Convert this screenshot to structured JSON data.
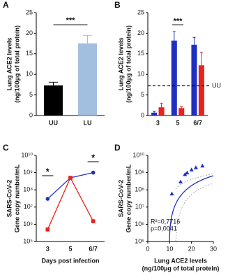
{
  "chart_data": [
    {
      "type": "bar",
      "panel": "A",
      "ylabel": [
        "Lung ACE2 levels",
        "(ng/100µg of total protein)"
      ],
      "categories": [
        "UU",
        "LU"
      ],
      "values": [
        7.3,
        17.5
      ],
      "errors": [
        0.8,
        2
      ],
      "colors": [
        "#000000",
        "#a3bfe0"
      ],
      "ylim": [
        0,
        25
      ],
      "yticks": [
        0,
        5,
        10,
        15,
        20,
        25
      ],
      "annotation": "***"
    },
    {
      "type": "bar",
      "panel": "B",
      "ylabel": [
        "Lung ACE2 levels",
        "(ng/100µg of total protein)"
      ],
      "categories": [
        "3",
        "5",
        "6/7"
      ],
      "series": [
        {
          "color": "#1f2fbf",
          "values": [
            0.7,
            18.2,
            17.2
          ],
          "errors": [
            0.3,
            2.2,
            1.8
          ]
        },
        {
          "color": "#e8221c",
          "values": [
            2.0,
            1.8,
            12.2
          ],
          "errors": [
            1.0,
            0.3,
            3.2
          ]
        }
      ],
      "reference_line": {
        "value": 7.2,
        "label": "UU"
      },
      "ylim": [
        0,
        25
      ],
      "yticks": [
        0,
        5,
        10,
        15,
        20,
        25
      ],
      "annotation": "***"
    },
    {
      "type": "line",
      "panel": "C",
      "ylabel": [
        "SARS-CoV-2",
        "Gene copy number/mL"
      ],
      "xlabel": [
        "Days post infection"
      ],
      "categories": [
        "3",
        "5",
        "6/7"
      ],
      "log_scale": true,
      "series": [
        {
          "color": "#1f2fbf",
          "marker": "circle",
          "values": [
            30000000,
            500000000,
            1000000000
          ]
        },
        {
          "color": "#e8221c",
          "marker": "square",
          "values": [
            500000,
            500000000,
            1500000
          ]
        }
      ],
      "ylim": [
        100000,
        10000000000
      ],
      "yticks": [
        {
          "value": 100000,
          "label": "10⁵"
        },
        {
          "value": 1000000,
          "label": "10⁶"
        },
        {
          "value": 10000000,
          "label": "10⁷"
        },
        {
          "value": 100000000,
          "label": "10⁸"
        },
        {
          "value": 1000000000,
          "label": "10⁹"
        },
        {
          "value": 10000000000,
          "label": "10¹⁰"
        }
      ],
      "annotations": [
        "*",
        "*"
      ]
    },
    {
      "type": "scatter",
      "panel": "D",
      "ylabel": [
        "SARS-CoV-2",
        "Gene copy number/mL"
      ],
      "xlabel": [
        "Lung ACE2 levels",
        "(ng/100µg of total protein)"
      ],
      "log_scale": true,
      "color": "#1f2fbf",
      "x": [
        11,
        15,
        17,
        18,
        20,
        22,
        25
      ],
      "values": [
        60000000,
        300000000,
        800000000,
        1000000000,
        1500000000,
        2000000000,
        2500000000
      ],
      "xlim": [
        0,
        30
      ],
      "xticks": [
        0,
        10,
        20,
        30
      ],
      "ylim": [
        100000,
        10000000000
      ],
      "yticks": [
        {
          "value": 100000,
          "label": "10⁵"
        },
        {
          "value": 1000000,
          "label": "10⁶"
        },
        {
          "value": 10000000,
          "label": "10⁷"
        },
        {
          "value": 100000000,
          "label": "10⁸"
        },
        {
          "value": 1000000000,
          "label": "10⁹"
        },
        {
          "value": 10000000000,
          "label": "10¹⁰"
        }
      ],
      "annotations": [
        "R²=0,7716",
        "p=0,0041"
      ]
    }
  ]
}
